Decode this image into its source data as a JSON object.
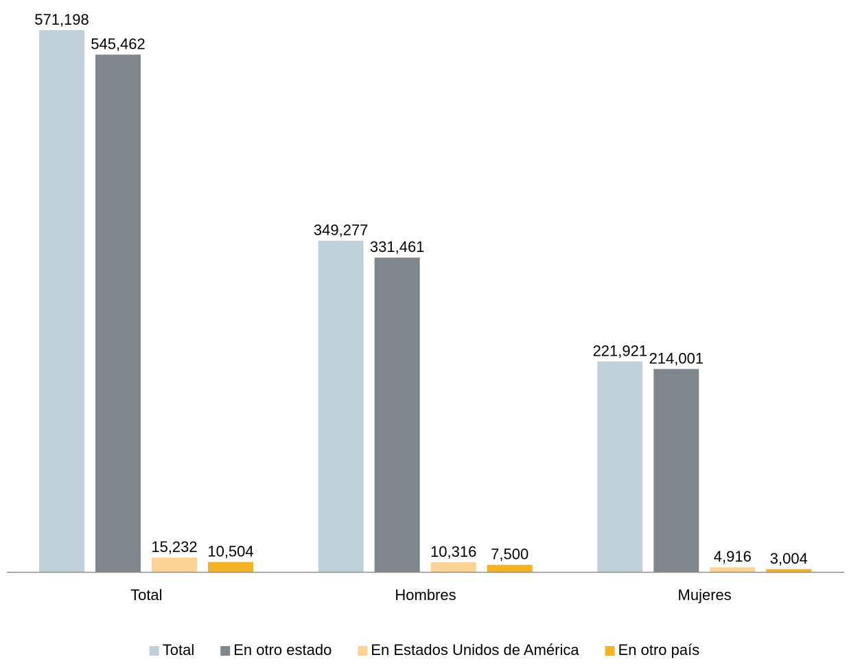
{
  "chart_data": {
    "type": "bar",
    "categories": [
      "Total",
      "Hombres",
      "Mujeres"
    ],
    "series": [
      {
        "name": "Total",
        "color": "#bfd0d8",
        "values": [
          571198,
          349277,
          221921
        ],
        "labels": [
          "571,198",
          "349,277",
          "221,921"
        ]
      },
      {
        "name": "En otro estado",
        "color": "#7f878c",
        "values": [
          545462,
          331461,
          214001
        ],
        "labels": [
          "545,462",
          "331,461",
          "214,001"
        ]
      },
      {
        "name": "En Estados Unidos de América",
        "color": "#fcd596",
        "values": [
          15232,
          10316,
          4916
        ],
        "labels": [
          "15,232",
          "10,316",
          "4,916"
        ]
      },
      {
        "name": "En otro país",
        "color": "#f4b224",
        "values": [
          10504,
          7500,
          3004
        ],
        "labels": [
          "10,504",
          "7,500",
          "3,004"
        ]
      }
    ],
    "ylim": [
      0,
      571198
    ],
    "grid": false,
    "legend_position": "bottom"
  }
}
